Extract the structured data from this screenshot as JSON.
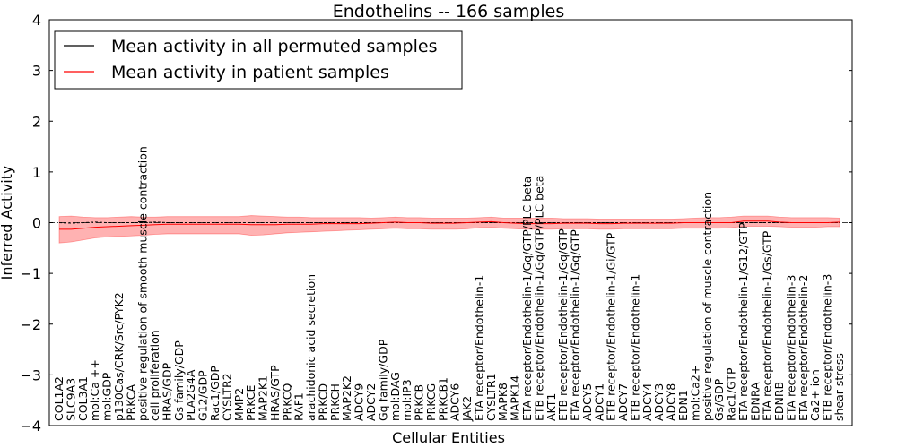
{
  "chart_data": {
    "type": "line",
    "title": "Endothelins -- 166 samples",
    "xlabel": "Cellular Entities",
    "ylabel": "Inferred Activity",
    "ylim": [
      -4,
      4
    ],
    "yticks": [
      "4",
      "3",
      "2",
      "1",
      "0",
      "−1",
      "−2",
      "−3",
      "−4"
    ],
    "ytick_values": [
      4,
      3,
      2,
      1,
      0,
      -1,
      -2,
      -3,
      -4
    ],
    "legend": {
      "placement": "top-left",
      "entries": [
        {
          "label": "Mean activity in all permuted samples",
          "color": "#000000"
        },
        {
          "label": "Mean activity in patient samples",
          "color": "#ff0000"
        }
      ]
    },
    "categories": [
      "COL1A2",
      "SLC9A3",
      "COL3A1",
      "mol:Ca ++",
      "mol:GDP",
      "p130Cas/CRK/Src/PYK2",
      "PRKCA",
      "positive regulation of smooth muscle contraction",
      "cell proliferation",
      "HRAS/GDP",
      "Gs family/GDP",
      "PLA2G4A",
      "G12/GDP",
      "Rac1/GDP",
      "CYSLTR2",
      "MMP2",
      "PRKCE",
      "MAP2K1",
      "HRAS/GTP",
      "PRKCQ",
      "RAF1",
      "arachidonic acid secretion",
      "PRKCD",
      "PRKCH",
      "MAP2K2",
      "ADCY9",
      "ADCY2",
      "Gq family/GDP",
      "mol:DAG",
      "mol:IP3",
      "PRKCB",
      "PRKCG",
      "PRKCB1",
      "ADCY6",
      "JAK2",
      "ETA receptor/Endothelin-1",
      "CYSLTR1",
      "MAPK8",
      "MAPK14",
      "ETA receptor/Endothelin-1/Gq/GTP/PLC beta",
      "ETB receptor/Endothelin-1/Gq/GTP/PLC beta",
      "AKT1",
      "ETB receptor/Endothelin-1/Gq/GTP",
      "ETA receptor/Endothelin-1/Gq/GTP",
      "ADCY5",
      "ADCY1",
      "ETB receptor/Endothelin-1/Gi/GTP",
      "ADCY7",
      "ETB receptor/Endothelin-1",
      "ADCY4",
      "ADCY3",
      "ADCY8",
      "EDN1",
      "mol:Ca2+",
      "positive regulation of muscle contraction",
      "Gs/GDP",
      "Rac1/GTP",
      "ETA receptor/Endothelin-1/G12/GTP",
      "EDNRA",
      "ETA receptor/Endothelin-1/Gs/GTP",
      "EDNRB",
      "ETA receptor/Endothelin-3",
      "ETA receptor/Endothelin-2",
      "Ca2+ ion",
      "ETB receptor/Endothelin-3",
      "shear stress"
    ],
    "series": [
      {
        "name": "Mean activity in all permuted samples",
        "color": "#000000",
        "style": "dashed",
        "values": [
          0.0,
          -0.01,
          0.0,
          0.01,
          0.0,
          0.0,
          0.0,
          0.0,
          0.01,
          0.0,
          0.0,
          0.0,
          0.0,
          0.0,
          0.0,
          0.0,
          0.0,
          0.0,
          0.0,
          0.0,
          0.0,
          0.0,
          0.0,
          0.0,
          0.0,
          0.0,
          0.0,
          0.0,
          0.0,
          0.0,
          0.0,
          0.0,
          0.0,
          0.0,
          0.0,
          0.0,
          0.0,
          0.0,
          0.0,
          0.0,
          0.0,
          0.0,
          0.0,
          0.0,
          0.0,
          0.0,
          0.0,
          0.0,
          0.0,
          0.0,
          0.0,
          0.0,
          0.0,
          0.0,
          0.0,
          0.0,
          0.0,
          0.0,
          0.0,
          0.0,
          0.0,
          0.0,
          0.0,
          0.0,
          0.0,
          0.0
        ]
      },
      {
        "name": "Mean activity in patient samples",
        "color": "#ff0000",
        "values": [
          -0.13,
          -0.13,
          -0.11,
          -0.09,
          -0.08,
          -0.07,
          -0.06,
          -0.05,
          -0.04,
          -0.03,
          -0.03,
          -0.03,
          -0.03,
          -0.03,
          -0.03,
          -0.03,
          -0.04,
          -0.04,
          -0.04,
          -0.03,
          -0.03,
          -0.03,
          -0.02,
          -0.02,
          -0.02,
          -0.02,
          -0.01,
          0.0,
          0.01,
          0.0,
          0.0,
          -0.01,
          -0.01,
          -0.01,
          0.0,
          0.01,
          0.02,
          0.0,
          -0.01,
          -0.02,
          -0.02,
          -0.02,
          -0.01,
          -0.01,
          -0.01,
          -0.02,
          -0.02,
          -0.01,
          -0.01,
          -0.01,
          -0.01,
          -0.01,
          0.0,
          0.0,
          0.0,
          0.0,
          0.0,
          0.03,
          0.03,
          0.03,
          0.01,
          0.0,
          0.0,
          0.0,
          0.0,
          0.01
        ],
        "band_lower": [
          -0.4,
          -0.38,
          -0.34,
          -0.3,
          -0.28,
          -0.27,
          -0.26,
          -0.25,
          -0.23,
          -0.22,
          -0.22,
          -0.22,
          -0.22,
          -0.22,
          -0.22,
          -0.22,
          -0.25,
          -0.24,
          -0.22,
          -0.2,
          -0.19,
          -0.18,
          -0.17,
          -0.16,
          -0.15,
          -0.14,
          -0.13,
          -0.12,
          -0.11,
          -0.12,
          -0.12,
          -0.13,
          -0.13,
          -0.13,
          -0.12,
          -0.1,
          -0.09,
          -0.11,
          -0.12,
          -0.13,
          -0.13,
          -0.13,
          -0.12,
          -0.12,
          -0.12,
          -0.13,
          -0.13,
          -0.12,
          -0.12,
          -0.12,
          -0.12,
          -0.12,
          -0.11,
          -0.11,
          -0.11,
          -0.11,
          -0.1,
          -0.07,
          -0.07,
          -0.07,
          -0.08,
          -0.09,
          -0.09,
          -0.09,
          -0.08,
          -0.08
        ],
        "band_upper": [
          0.12,
          0.13,
          0.11,
          0.1,
          0.1,
          0.11,
          0.12,
          0.11,
          0.11,
          0.12,
          0.12,
          0.12,
          0.12,
          0.12,
          0.12,
          0.12,
          0.14,
          0.13,
          0.12,
          0.11,
          0.11,
          0.1,
          0.1,
          0.1,
          0.1,
          0.1,
          0.09,
          0.1,
          0.11,
          0.1,
          0.1,
          0.09,
          0.09,
          0.09,
          0.09,
          0.1,
          0.11,
          0.09,
          0.09,
          0.09,
          0.09,
          0.09,
          0.08,
          0.08,
          0.08,
          0.07,
          0.07,
          0.07,
          0.07,
          0.07,
          0.07,
          0.07,
          0.08,
          0.09,
          0.1,
          0.1,
          0.11,
          0.13,
          0.13,
          0.13,
          0.11,
          0.1,
          0.1,
          0.1,
          0.1,
          0.09
        ]
      }
    ]
  }
}
